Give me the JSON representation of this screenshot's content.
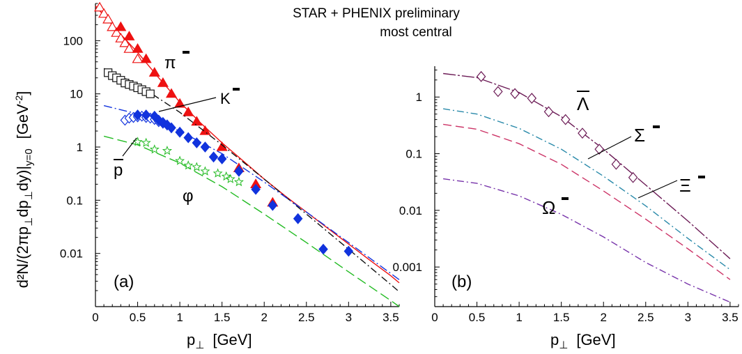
{
  "header": {
    "line1": "STAR + PHENIX preliminary",
    "line2": "most central"
  },
  "ylabel": {
    "main": "d²N/(2πp",
    "sub1": "⊥",
    "mid": "dp",
    "sub2": "⊥",
    "end": "dy)|",
    "sub3": "y=0",
    "unit_open": "[GeV",
    "unit_sup": "-2",
    "unit_close": "]"
  },
  "xlabel": {
    "main": "p",
    "sub": "⊥",
    "unit": "[GeV]"
  },
  "colors": {
    "pi": "#ee1111",
    "K": "#111111",
    "p": "#1133dd",
    "phi": "#22bb22",
    "Lambda": "#6b1a55",
    "Sigma": "#2a8aaa",
    "Xi": "#cc3366",
    "Omega": "#7733aa",
    "axis": "#000000"
  },
  "chart_data": [
    {
      "type": "scatter",
      "panel_label": "(a)",
      "xlim": [
        0,
        3.6
      ],
      "ylim": [
        0.001,
        500
      ],
      "yscale": "log",
      "x_ticks": [
        0,
        0.5,
        1,
        1.5,
        2,
        2.5,
        3,
        3.5
      ],
      "x_tick_labels": [
        "0",
        "0.5",
        "1",
        "1.5",
        "2",
        "2.5",
        "3",
        "3.5"
      ],
      "y_ticks": [
        0.01,
        0.1,
        1,
        10,
        100
      ],
      "y_tick_labels": [
        "0.01",
        "0.1",
        "1",
        "10",
        "100"
      ],
      "series": [
        {
          "name": "π⁻",
          "label": "π",
          "points_open": {
            "x": [
              0.05,
              0.1,
              0.15,
              0.2,
              0.25,
              0.3,
              0.35,
              0.4,
              0.5
            ],
            "y": [
              420,
              320,
              250,
              180,
              140,
              110,
              90,
              70,
              45
            ]
          },
          "points_filled": {
            "x": [
              0.3,
              0.4,
              0.5,
              0.6,
              0.7,
              0.8,
              0.9,
              1.0,
              1.1,
              1.2,
              1.3,
              1.5,
              1.7,
              1.9,
              2.1
            ],
            "y": [
              180,
              120,
              70,
              45,
              25,
              16,
              10,
              6.5,
              4.5,
              3.0,
              2.0,
              1.0,
              0.4,
              0.2,
              0.09
            ]
          },
          "curve": {
            "x": [
              0,
              0.25,
              0.5,
              0.75,
              1,
              1.25,
              1.5,
              1.75,
              2,
              2.25,
              2.5,
              2.75,
              3,
              3.25,
              3.5,
              3.6
            ],
            "y": [
              450,
              160,
              60,
              20,
              7,
              2.8,
              1.2,
              0.55,
              0.25,
              0.12,
              0.06,
              0.03,
              0.015,
              0.0075,
              0.0038,
              0.0028
            ]
          }
        },
        {
          "name": "K⁻",
          "label": "K",
          "points_open": {
            "x": [
              0.15,
              0.2,
              0.25,
              0.3,
              0.35,
              0.4,
              0.45,
              0.5,
              0.55,
              0.6,
              0.65
            ],
            "y": [
              25,
              22,
              20,
              18,
              16,
              15,
              14,
              13,
              12,
              11,
              10
            ]
          },
          "curve": {
            "x": [
              0.1,
              0.5,
              1,
              1.5,
              2,
              2.5,
              3,
              3.5,
              3.6
            ],
            "y": [
              30,
              15,
              4.5,
              1.1,
              0.25,
              0.055,
              0.012,
              0.0026,
              0.0019
            ]
          }
        },
        {
          "name": "p̄",
          "label": "p",
          "points_open": {
            "x": [
              0.35,
              0.4,
              0.45,
              0.5,
              0.55,
              0.6,
              0.65,
              0.7,
              0.75,
              0.8,
              0.85
            ],
            "y": [
              3.2,
              3.5,
              3.6,
              3.7,
              3.8,
              3.6,
              3.5,
              3.3,
              3.0,
              2.8,
              2.6
            ]
          },
          "points_filled": {
            "x": [
              0.5,
              0.6,
              0.7,
              0.75,
              0.8,
              0.85,
              0.9,
              1.0,
              1.1,
              1.2,
              1.3,
              1.4,
              1.5,
              1.7,
              1.9,
              2.1,
              2.4,
              2.7,
              3.0
            ],
            "y": [
              4.0,
              4.0,
              3.8,
              3.2,
              2.9,
              2.6,
              2.3,
              1.9,
              1.5,
              1.2,
              1.0,
              0.65,
              0.6,
              0.35,
              0.16,
              0.08,
              0.045,
              0.012,
              0.011
            ]
          },
          "curve": {
            "x": [
              0.1,
              0.5,
              1,
              1.5,
              2,
              2.5,
              3,
              3.5,
              3.6
            ],
            "y": [
              6.0,
              4.2,
              2.0,
              0.75,
              0.22,
              0.06,
              0.016,
              0.0042,
              0.0032
            ]
          }
        },
        {
          "name": "φ",
          "label": "φ",
          "points_open": {
            "x": [
              0.5,
              0.6,
              0.7,
              0.85,
              1.0,
              1.1,
              1.2,
              1.3,
              1.45,
              1.55,
              1.6,
              1.7
            ],
            "y": [
              1.25,
              1.2,
              0.9,
              0.85,
              0.55,
              0.45,
              0.42,
              0.35,
              0.32,
              0.28,
              0.25,
              0.22
            ]
          },
          "curve": {
            "x": [
              0.1,
              0.5,
              1,
              1.5,
              2,
              2.5,
              3,
              3.5,
              3.6
            ],
            "y": [
              1.6,
              1.1,
              0.5,
              0.18,
              0.055,
              0.016,
              0.0045,
              0.0013,
              0.001
            ]
          }
        }
      ]
    },
    {
      "type": "line",
      "panel_label": "(b)",
      "xlim": [
        0,
        3.6
      ],
      "ylim": [
        0.0002,
        3.5
      ],
      "yscale": "log",
      "x_ticks": [
        0,
        0.5,
        1,
        1.5,
        2,
        2.5,
        3,
        3.5
      ],
      "x_tick_labels": [
        "0",
        "0.5",
        "1",
        "1.5",
        "2",
        "2.5",
        "3",
        "3.5"
      ],
      "y_ticks": [
        0.001,
        0.01,
        0.1,
        1
      ],
      "y_tick_labels": [
        "0.001",
        "0.01",
        "0.1",
        "1"
      ],
      "series": [
        {
          "name": "Λ̄",
          "label": "Λ",
          "points_open": {
            "x": [
              0.55,
              0.75,
              0.95,
              1.15,
              1.35,
              1.55,
              1.75,
              1.95,
              2.15,
              2.35
            ],
            "y": [
              2.3,
              1.25,
              1.15,
              0.95,
              0.55,
              0.4,
              0.23,
              0.12,
              0.065,
              0.038
            ]
          },
          "curve": {
            "x": [
              0.1,
              0.5,
              1,
              1.5,
              2,
              2.5,
              3,
              3.5
            ],
            "y": [
              2.6,
              2.2,
              1.2,
              0.45,
              0.12,
              0.028,
              0.0065,
              0.0014
            ]
          }
        },
        {
          "name": "Σ⁻",
          "label": "Σ",
          "curve": {
            "x": [
              0.1,
              0.5,
              1,
              1.5,
              2,
              2.5,
              3,
              3.5
            ],
            "y": [
              0.62,
              0.5,
              0.28,
              0.12,
              0.04,
              0.012,
              0.0032,
              0.0009
            ]
          }
        },
        {
          "name": "Ξ⁻",
          "label": "Ξ",
          "curve": {
            "x": [
              0.1,
              0.5,
              1,
              1.5,
              2,
              2.5,
              3,
              3.5
            ],
            "y": [
              0.33,
              0.27,
              0.15,
              0.065,
              0.022,
              0.007,
              0.0021,
              0.0006
            ]
          }
        },
        {
          "name": "Ω⁻",
          "label": "Ω",
          "curve": {
            "x": [
              0.1,
              0.5,
              1,
              1.5,
              2,
              2.5,
              3,
              3.5
            ],
            "y": [
              0.036,
              0.03,
              0.018,
              0.0085,
              0.0034,
              0.0012,
              0.0005,
              0.00024
            ]
          }
        }
      ]
    }
  ]
}
